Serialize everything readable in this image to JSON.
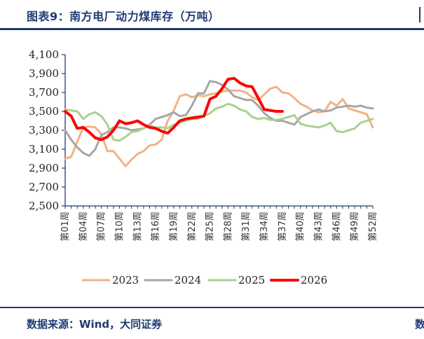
{
  "header": {
    "title": "图表9：南方电厂动力煤库存（万吨）",
    "right_mark": ""
  },
  "footer": {
    "source": "数据来源：Wind，大同证券",
    "right_glyph": "数"
  },
  "chart_data": {
    "type": "line",
    "title": "图表9：南方电厂动力煤库存（万吨）",
    "xlabel": "",
    "ylabel": "",
    "ylim": [
      2500,
      4100
    ],
    "yticks": [
      2500,
      2700,
      2900,
      3100,
      3300,
      3500,
      3700,
      3900,
      4100
    ],
    "ytick_labels": [
      "2,500",
      "2,700",
      "2,900",
      "3,100",
      "3,300",
      "3,500",
      "3,700",
      "3,900",
      "4,100"
    ],
    "x_tick_labels": [
      "第01周",
      "第04周",
      "第07周",
      "第10周",
      "第13周",
      "第16周",
      "第19周",
      "第22周",
      "第25周",
      "第28周",
      "第31周",
      "第34周",
      "第37周",
      "第40周",
      "第43周",
      "第46周",
      "第49周",
      "第52周"
    ],
    "x_tick_weeks": [
      1,
      4,
      7,
      10,
      13,
      16,
      19,
      22,
      25,
      28,
      31,
      34,
      37,
      40,
      43,
      46,
      49,
      52
    ],
    "legend_position": "bottom",
    "grid": false,
    "series": [
      {
        "name": "2023",
        "color": "#f4b183",
        "width": 3,
        "weeks": [
          1,
          2,
          3,
          4,
          5,
          6,
          7,
          8,
          9,
          10,
          11,
          12,
          13,
          14,
          15,
          16,
          17,
          18,
          19,
          20,
          21,
          22,
          23,
          24,
          25,
          26,
          27,
          28,
          29,
          30,
          31,
          32,
          33,
          34,
          35,
          36,
          37,
          38,
          39,
          40,
          41,
          42,
          43,
          44,
          45,
          46,
          47,
          48,
          49,
          50,
          51,
          52
        ],
        "values": [
          3000,
          3020,
          3180,
          3330,
          3340,
          3330,
          3260,
          3080,
          3080,
          3000,
          2920,
          2990,
          3050,
          3080,
          3140,
          3150,
          3200,
          3400,
          3510,
          3660,
          3680,
          3650,
          3670,
          3660,
          3680,
          3690,
          3710,
          3720,
          3720,
          3720,
          3700,
          3650,
          3620,
          3680,
          3740,
          3760,
          3700,
          3690,
          3640,
          3580,
          3550,
          3510,
          3490,
          3500,
          3600,
          3560,
          3630,
          3530,
          3510,
          3490,
          3470,
          3330
        ]
      },
      {
        "name": "2024",
        "color": "#a6a6a6",
        "width": 3,
        "weeks": [
          1,
          2,
          3,
          4,
          5,
          6,
          7,
          8,
          9,
          10,
          11,
          12,
          13,
          14,
          15,
          16,
          17,
          18,
          19,
          20,
          21,
          22,
          23,
          24,
          25,
          26,
          27,
          28,
          29,
          30,
          31,
          32,
          33,
          34,
          35,
          36,
          37,
          38,
          39,
          40,
          41,
          42,
          43,
          44,
          45,
          46,
          47,
          48,
          49,
          50,
          51,
          52
        ],
        "values": [
          3300,
          3200,
          3120,
          3060,
          3030,
          3100,
          3250,
          3280,
          3330,
          3330,
          3320,
          3300,
          3310,
          3320,
          3360,
          3420,
          3440,
          3460,
          3490,
          3450,
          3460,
          3560,
          3690,
          3690,
          3820,
          3810,
          3780,
          3730,
          3660,
          3640,
          3620,
          3620,
          3560,
          3480,
          3430,
          3400,
          3400,
          3380,
          3360,
          3440,
          3470,
          3500,
          3520,
          3500,
          3510,
          3540,
          3550,
          3560,
          3550,
          3560,
          3540,
          3530
        ]
      },
      {
        "name": "2025",
        "color": "#a9d18e",
        "width": 3,
        "weeks": [
          1,
          2,
          3,
          4,
          5,
          6,
          7,
          8,
          9,
          10,
          11,
          12,
          13,
          14,
          15,
          16,
          17,
          18,
          19,
          20,
          21,
          22,
          23,
          24,
          25,
          26,
          27,
          28,
          29,
          30,
          31,
          32,
          33,
          34,
          35,
          36,
          37,
          38,
          39,
          40,
          41,
          42,
          43,
          44,
          45,
          46,
          47,
          48,
          49,
          50,
          51,
          52
        ],
        "values": [
          3520,
          3510,
          3500,
          3420,
          3470,
          3490,
          3450,
          3360,
          3200,
          3190,
          3230,
          3280,
          3290,
          3320,
          3350,
          3330,
          3330,
          3320,
          3360,
          3380,
          3400,
          3420,
          3420,
          3450,
          3480,
          3530,
          3550,
          3580,
          3560,
          3520,
          3500,
          3440,
          3420,
          3430,
          3410,
          3410,
          3420,
          3440,
          3460,
          3370,
          3350,
          3340,
          3330,
          3350,
          3380,
          3290,
          3280,
          3300,
          3320,
          3380,
          3400,
          3420
        ]
      },
      {
        "name": "2026",
        "color": "#ff0000",
        "width": 4,
        "weeks": [
          1,
          2,
          3,
          4,
          5,
          6,
          7,
          8,
          9,
          10,
          11,
          12,
          13,
          14,
          15,
          16,
          17,
          18,
          19,
          20,
          21,
          22,
          23,
          24,
          25,
          26,
          27,
          28,
          29,
          30,
          31,
          32,
          33,
          34,
          35,
          36,
          37
        ],
        "values": [
          3500,
          3450,
          3320,
          3330,
          3280,
          3220,
          3200,
          3230,
          3300,
          3400,
          3370,
          3380,
          3400,
          3360,
          3330,
          3320,
          3290,
          3270,
          3330,
          3400,
          3420,
          3430,
          3440,
          3450,
          3630,
          3660,
          3740,
          3840,
          3850,
          3800,
          3770,
          3760,
          3640,
          3520,
          3510,
          3500,
          3500
        ]
      }
    ]
  }
}
